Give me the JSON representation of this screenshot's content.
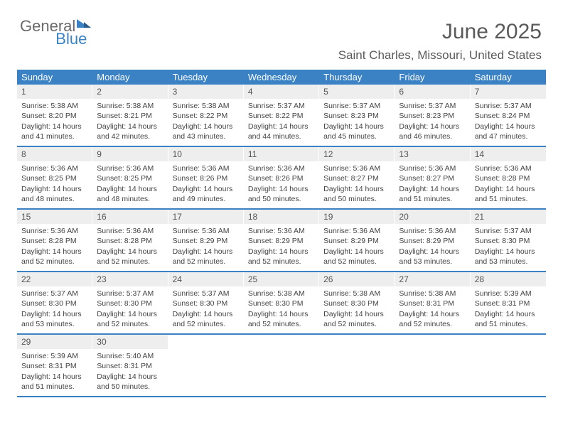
{
  "brand": {
    "part1": "General",
    "part2": "Blue"
  },
  "title": "June 2025",
  "location": "Saint Charles, Missouri, United States",
  "colors": {
    "accent": "#3b82c4",
    "daynum_bg": "#eeeeee",
    "text": "#444444"
  },
  "weekdays": [
    "Sunday",
    "Monday",
    "Tuesday",
    "Wednesday",
    "Thursday",
    "Friday",
    "Saturday"
  ],
  "weeks": [
    [
      {
        "n": "1",
        "sr": "5:38 AM",
        "ss": "8:20 PM",
        "dl": "14 hours and 41 minutes."
      },
      {
        "n": "2",
        "sr": "5:38 AM",
        "ss": "8:21 PM",
        "dl": "14 hours and 42 minutes."
      },
      {
        "n": "3",
        "sr": "5:38 AM",
        "ss": "8:22 PM",
        "dl": "14 hours and 43 minutes."
      },
      {
        "n": "4",
        "sr": "5:37 AM",
        "ss": "8:22 PM",
        "dl": "14 hours and 44 minutes."
      },
      {
        "n": "5",
        "sr": "5:37 AM",
        "ss": "8:23 PM",
        "dl": "14 hours and 45 minutes."
      },
      {
        "n": "6",
        "sr": "5:37 AM",
        "ss": "8:23 PM",
        "dl": "14 hours and 46 minutes."
      },
      {
        "n": "7",
        "sr": "5:37 AM",
        "ss": "8:24 PM",
        "dl": "14 hours and 47 minutes."
      }
    ],
    [
      {
        "n": "8",
        "sr": "5:36 AM",
        "ss": "8:25 PM",
        "dl": "14 hours and 48 minutes."
      },
      {
        "n": "9",
        "sr": "5:36 AM",
        "ss": "8:25 PM",
        "dl": "14 hours and 48 minutes."
      },
      {
        "n": "10",
        "sr": "5:36 AM",
        "ss": "8:26 PM",
        "dl": "14 hours and 49 minutes."
      },
      {
        "n": "11",
        "sr": "5:36 AM",
        "ss": "8:26 PM",
        "dl": "14 hours and 50 minutes."
      },
      {
        "n": "12",
        "sr": "5:36 AM",
        "ss": "8:27 PM",
        "dl": "14 hours and 50 minutes."
      },
      {
        "n": "13",
        "sr": "5:36 AM",
        "ss": "8:27 PM",
        "dl": "14 hours and 51 minutes."
      },
      {
        "n": "14",
        "sr": "5:36 AM",
        "ss": "8:28 PM",
        "dl": "14 hours and 51 minutes."
      }
    ],
    [
      {
        "n": "15",
        "sr": "5:36 AM",
        "ss": "8:28 PM",
        "dl": "14 hours and 52 minutes."
      },
      {
        "n": "16",
        "sr": "5:36 AM",
        "ss": "8:28 PM",
        "dl": "14 hours and 52 minutes."
      },
      {
        "n": "17",
        "sr": "5:36 AM",
        "ss": "8:29 PM",
        "dl": "14 hours and 52 minutes."
      },
      {
        "n": "18",
        "sr": "5:36 AM",
        "ss": "8:29 PM",
        "dl": "14 hours and 52 minutes."
      },
      {
        "n": "19",
        "sr": "5:36 AM",
        "ss": "8:29 PM",
        "dl": "14 hours and 52 minutes."
      },
      {
        "n": "20",
        "sr": "5:36 AM",
        "ss": "8:29 PM",
        "dl": "14 hours and 53 minutes."
      },
      {
        "n": "21",
        "sr": "5:37 AM",
        "ss": "8:30 PM",
        "dl": "14 hours and 53 minutes."
      }
    ],
    [
      {
        "n": "22",
        "sr": "5:37 AM",
        "ss": "8:30 PM",
        "dl": "14 hours and 53 minutes."
      },
      {
        "n": "23",
        "sr": "5:37 AM",
        "ss": "8:30 PM",
        "dl": "14 hours and 52 minutes."
      },
      {
        "n": "24",
        "sr": "5:37 AM",
        "ss": "8:30 PM",
        "dl": "14 hours and 52 minutes."
      },
      {
        "n": "25",
        "sr": "5:38 AM",
        "ss": "8:30 PM",
        "dl": "14 hours and 52 minutes."
      },
      {
        "n": "26",
        "sr": "5:38 AM",
        "ss": "8:30 PM",
        "dl": "14 hours and 52 minutes."
      },
      {
        "n": "27",
        "sr": "5:38 AM",
        "ss": "8:31 PM",
        "dl": "14 hours and 52 minutes."
      },
      {
        "n": "28",
        "sr": "5:39 AM",
        "ss": "8:31 PM",
        "dl": "14 hours and 51 minutes."
      }
    ],
    [
      {
        "n": "29",
        "sr": "5:39 AM",
        "ss": "8:31 PM",
        "dl": "14 hours and 51 minutes."
      },
      {
        "n": "30",
        "sr": "5:40 AM",
        "ss": "8:31 PM",
        "dl": "14 hours and 50 minutes."
      },
      null,
      null,
      null,
      null,
      null
    ]
  ],
  "labels": {
    "sunrise": "Sunrise:",
    "sunset": "Sunset:",
    "daylight": "Daylight:"
  }
}
